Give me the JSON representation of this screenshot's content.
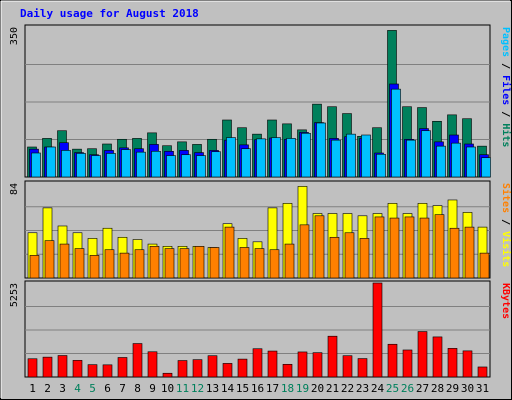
{
  "chart_data": {
    "type": "bar",
    "title": "Daily usage for August 2018",
    "categories": [
      "1",
      "2",
      "3",
      "4",
      "5",
      "6",
      "7",
      "8",
      "9",
      "10",
      "11",
      "12",
      "13",
      "14",
      "15",
      "16",
      "17",
      "18",
      "19",
      "20",
      "21",
      "22",
      "23",
      "24",
      "25",
      "26",
      "27",
      "28",
      "29",
      "30",
      "31"
    ],
    "weekend_days": [
      "4",
      "5",
      "11",
      "12",
      "18",
      "19",
      "25",
      "26"
    ],
    "colors": {
      "title": "#0000ff",
      "hits": "#00805c",
      "files": "#0000ff",
      "pages": "#00c0ff",
      "visits": "#ffff00",
      "sites": "#ff8000",
      "kbytes": "#ff0000",
      "weekday_label": "#000000",
      "weekend_label": "#00805c"
    },
    "panels": [
      {
        "id": "requests",
        "ymax_label": "350",
        "ymax": 350,
        "legend": [
          {
            "text": "Pages",
            "color": "#00c0ff"
          },
          {
            "text": " / ",
            "color": "#000000"
          },
          {
            "text": "Files",
            "color": "#0000ff"
          },
          {
            "text": " / ",
            "color": "#000000"
          },
          {
            "text": "Hits",
            "color": "#00805c"
          }
        ],
        "series": [
          {
            "name": "Hits",
            "values": [
              70,
              90,
              108,
              65,
              66,
              77,
              88,
              90,
              103,
              73,
              82,
              76,
              88,
              133,
              115,
              100,
              133,
              124,
              110,
              170,
              164,
              148,
              95,
              115,
              342,
              164,
              162,
              130,
              145,
              136,
              72
            ]
          },
          {
            "name": "Files",
            "values": [
              65,
              70,
              80,
              57,
              52,
              62,
              68,
              66,
              76,
              60,
              62,
              57,
              62,
              86,
              75,
              87,
              91,
              88,
              104,
              127,
              90,
              94,
              90,
              56,
              217,
              88,
              113,
              82,
              98,
              77,
              52
            ]
          },
          {
            "name": "Pages",
            "values": [
              56,
              70,
              62,
              55,
              50,
              55,
              64,
              58,
              60,
              50,
              52,
              50,
              59,
              92,
              66,
              89,
              92,
              90,
              102,
              126,
              86,
              100,
              98,
              53,
              205,
              86,
              108,
              72,
              79,
              70,
              45
            ]
          }
        ]
      },
      {
        "id": "visits",
        "ymax_label": "84",
        "ymax": 84,
        "legend": [
          {
            "text": "Sites",
            "color": "#ff8000"
          },
          {
            "text": " / ",
            "color": "#000000"
          },
          {
            "text": "Visits",
            "color": "#ffff00"
          }
        ],
        "series": [
          {
            "name": "Visits",
            "values": [
              40,
              62,
              46,
              40,
              35,
              44,
              36,
              34,
              30,
              28,
              28,
              28,
              27,
              48,
              35,
              32,
              62,
              66,
              81,
              57,
              57,
              57,
              55,
              57,
              66,
              57,
              66,
              64,
              69,
              58,
              45
            ]
          },
          {
            "name": "Sites",
            "values": [
              20,
              33,
              30,
              26,
              20,
              25,
              22,
              25,
              28,
              26,
              26,
              28,
              27,
              45,
              27,
              26,
              25,
              30,
              47,
              55,
              36,
              40,
              35,
              54,
              53,
              54,
              53,
              56,
              44,
              45,
              22
            ]
          }
        ]
      },
      {
        "id": "kbytes",
        "ymax_label": "5253",
        "ymax": 5253,
        "legend": [
          {
            "text": "KBytes",
            "color": "#ff0000"
          }
        ],
        "series": [
          {
            "name": "KBytes",
            "values": [
              1020,
              1110,
              1200,
              930,
              690,
              680,
              1090,
              1870,
              1410,
              210,
              920,
              970,
              1190,
              760,
              1000,
              1580,
              1450,
              710,
              1400,
              1360,
              2280,
              1190,
              1030,
              5253,
              1830,
              1510,
              2540,
              2240,
              1600,
              1460,
              560
            ]
          }
        ]
      }
    ]
  }
}
